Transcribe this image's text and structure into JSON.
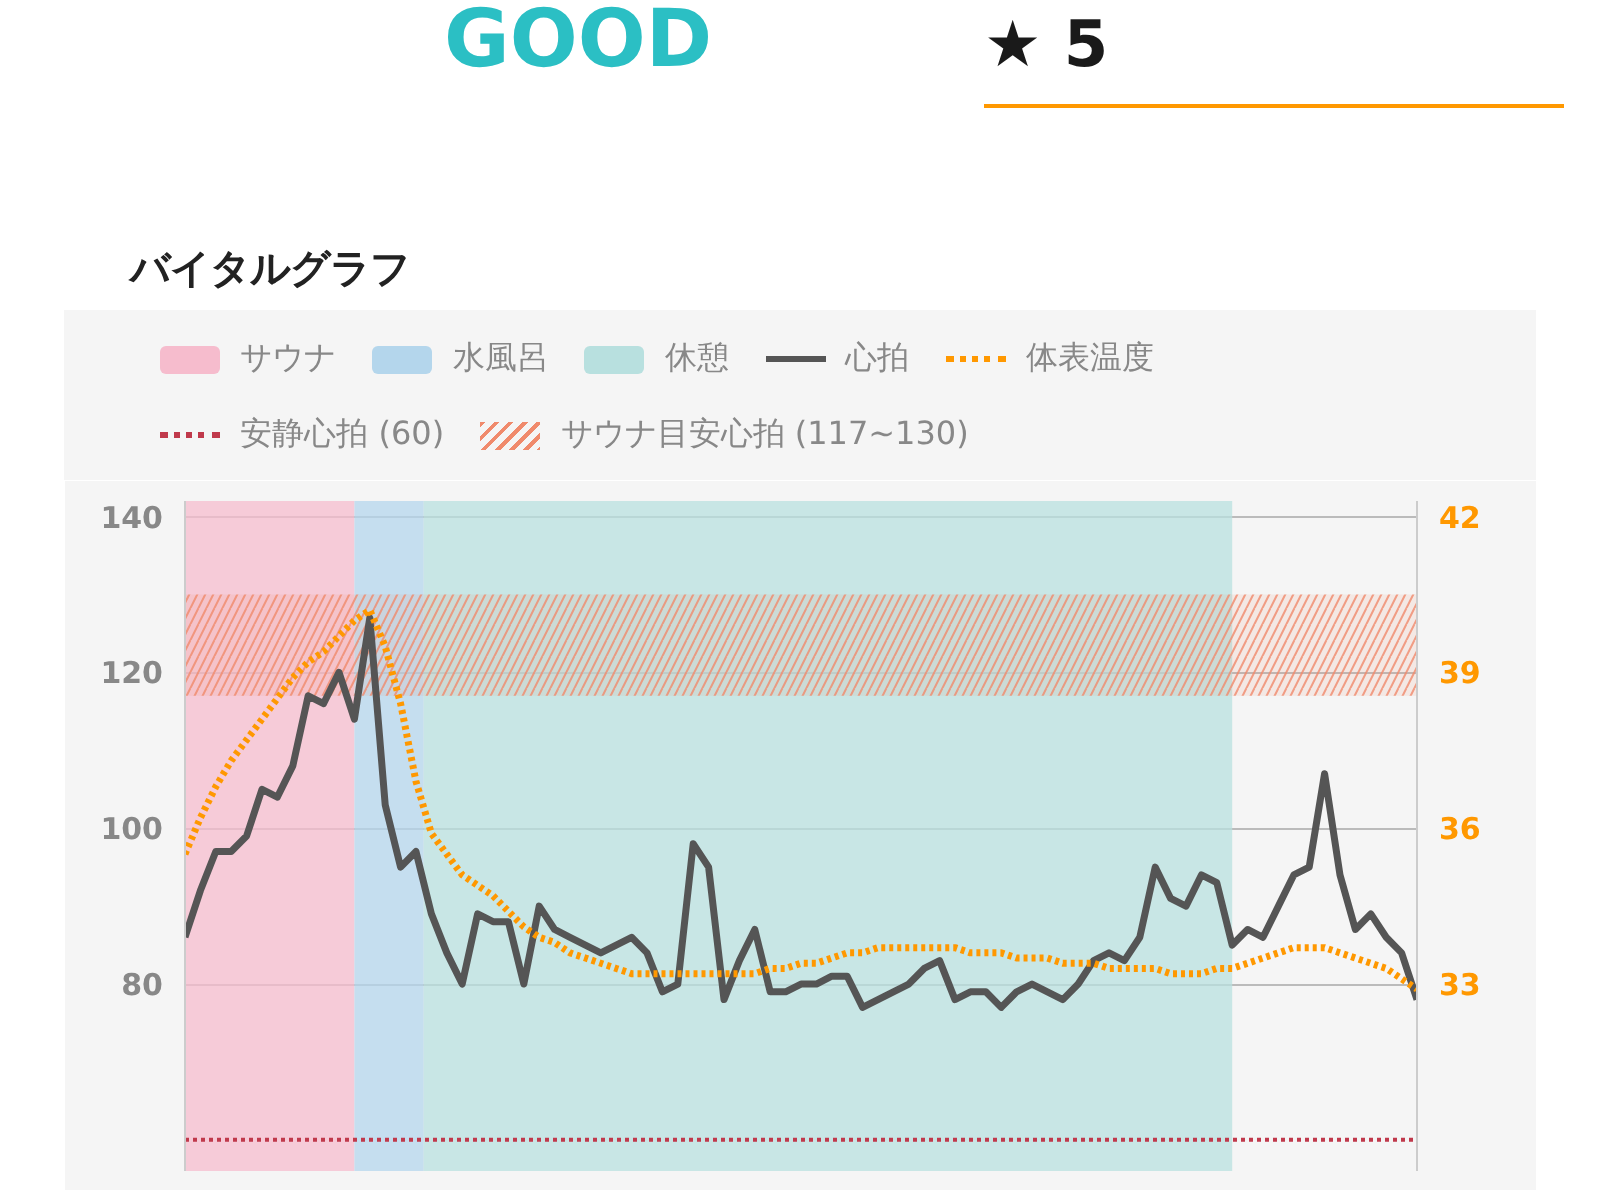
{
  "chart_data": {
    "type": "line",
    "title": "バイタルグラフ",
    "annotations": [
      "GOOD",
      "★ 5",
      "サウナ",
      "水風呂",
      "休憩"
    ],
    "categories": [
      null,
      null,
      null,
      null,
      null,
      null,
      null,
      null,
      null,
      null,
      null,
      null,
      null,
      null,
      null,
      null,
      null,
      null,
      null,
      null,
      null,
      null,
      null,
      null,
      null,
      null,
      null,
      null,
      null,
      null,
      null,
      null,
      null,
      null,
      null,
      null,
      null,
      null,
      null,
      null,
      null,
      null,
      null,
      null,
      null,
      null,
      null,
      null,
      null,
      null,
      null,
      null,
      null,
      null,
      null,
      null,
      null,
      null,
      null,
      null,
      null,
      null,
      null,
      null,
      null,
      null,
      null,
      null,
      null,
      null,
      null,
      null,
      null,
      null,
      null,
      null,
      null,
      null,
      null,
      null,
      null
    ],
    "ylim": [
      56,
      142
    ],
    "yticks": [
      80,
      100,
      120,
      140
    ],
    "y2lim": [
      29.4,
      42.3
    ],
    "y2ticks": [
      33,
      36,
      39,
      42
    ],
    "tick_labels": "y",
    "grid": "y",
    "legend": "top",
    "series": [
      {
        "name": "心拍",
        "color": "#555555",
        "line_style": "solid",
        "values": [
          86,
          92,
          97,
          97,
          99,
          105,
          104,
          108,
          117,
          116,
          120,
          114,
          127,
          103,
          95,
          97,
          89,
          84,
          80,
          89,
          88,
          88,
          80,
          90,
          87,
          86,
          85,
          84,
          85,
          86,
          84,
          79,
          80,
          98,
          95,
          78,
          83,
          87,
          79,
          79,
          80,
          80,
          81,
          81,
          77,
          78,
          79,
          80,
          82,
          83,
          78,
          79,
          79,
          77,
          79,
          80,
          79,
          78,
          80,
          83,
          84,
          83,
          86,
          95,
          91,
          90,
          94,
          93,
          85,
          87,
          86,
          90,
          94,
          95,
          107,
          94,
          87,
          89,
          86,
          84,
          78
        ]
      },
      {
        "name": "体表温度",
        "color": "#ff9800",
        "line_style": "dotted",
        "axis": "y2",
        "values": [
          35.5,
          36.2,
          36.8,
          37.3,
          37.7,
          38.1,
          38.5,
          38.9,
          39.2,
          39.4,
          39.7,
          40.0,
          40.2,
          39.5,
          38.4,
          36.9,
          35.9,
          35.5,
          35.1,
          34.9,
          34.7,
          34.4,
          34.1,
          33.9,
          33.8,
          33.6,
          33.5,
          33.4,
          33.3,
          33.2,
          33.2,
          33.2,
          33.2,
          33.2,
          33.2,
          33.2,
          33.2,
          33.2,
          33.3,
          33.3,
          33.4,
          33.4,
          33.5,
          33.6,
          33.6,
          33.7,
          33.7,
          33.7,
          33.7,
          33.7,
          33.7,
          33.6,
          33.6,
          33.6,
          33.5,
          33.5,
          33.5,
          33.4,
          33.4,
          33.4,
          33.3,
          33.3,
          33.3,
          33.3,
          33.2,
          33.2,
          33.2,
          33.3,
          33.3,
          33.4,
          33.5,
          33.6,
          33.7,
          33.7,
          33.7,
          33.6,
          33.5,
          33.4,
          33.3,
          33.1,
          32.9
        ]
      }
    ],
    "bands": [
      {
        "axis": "y",
        "from": 117,
        "to": 130,
        "label": "サウナ目安心拍 (117~130)",
        "color": "#f08a6c"
      }
    ],
    "ref_lines": [
      {
        "axis": "y",
        "value": 60,
        "label": "安静心拍 (60)",
        "color": "#c0394b",
        "line_style": "dotted"
      }
    ]
  }
}
